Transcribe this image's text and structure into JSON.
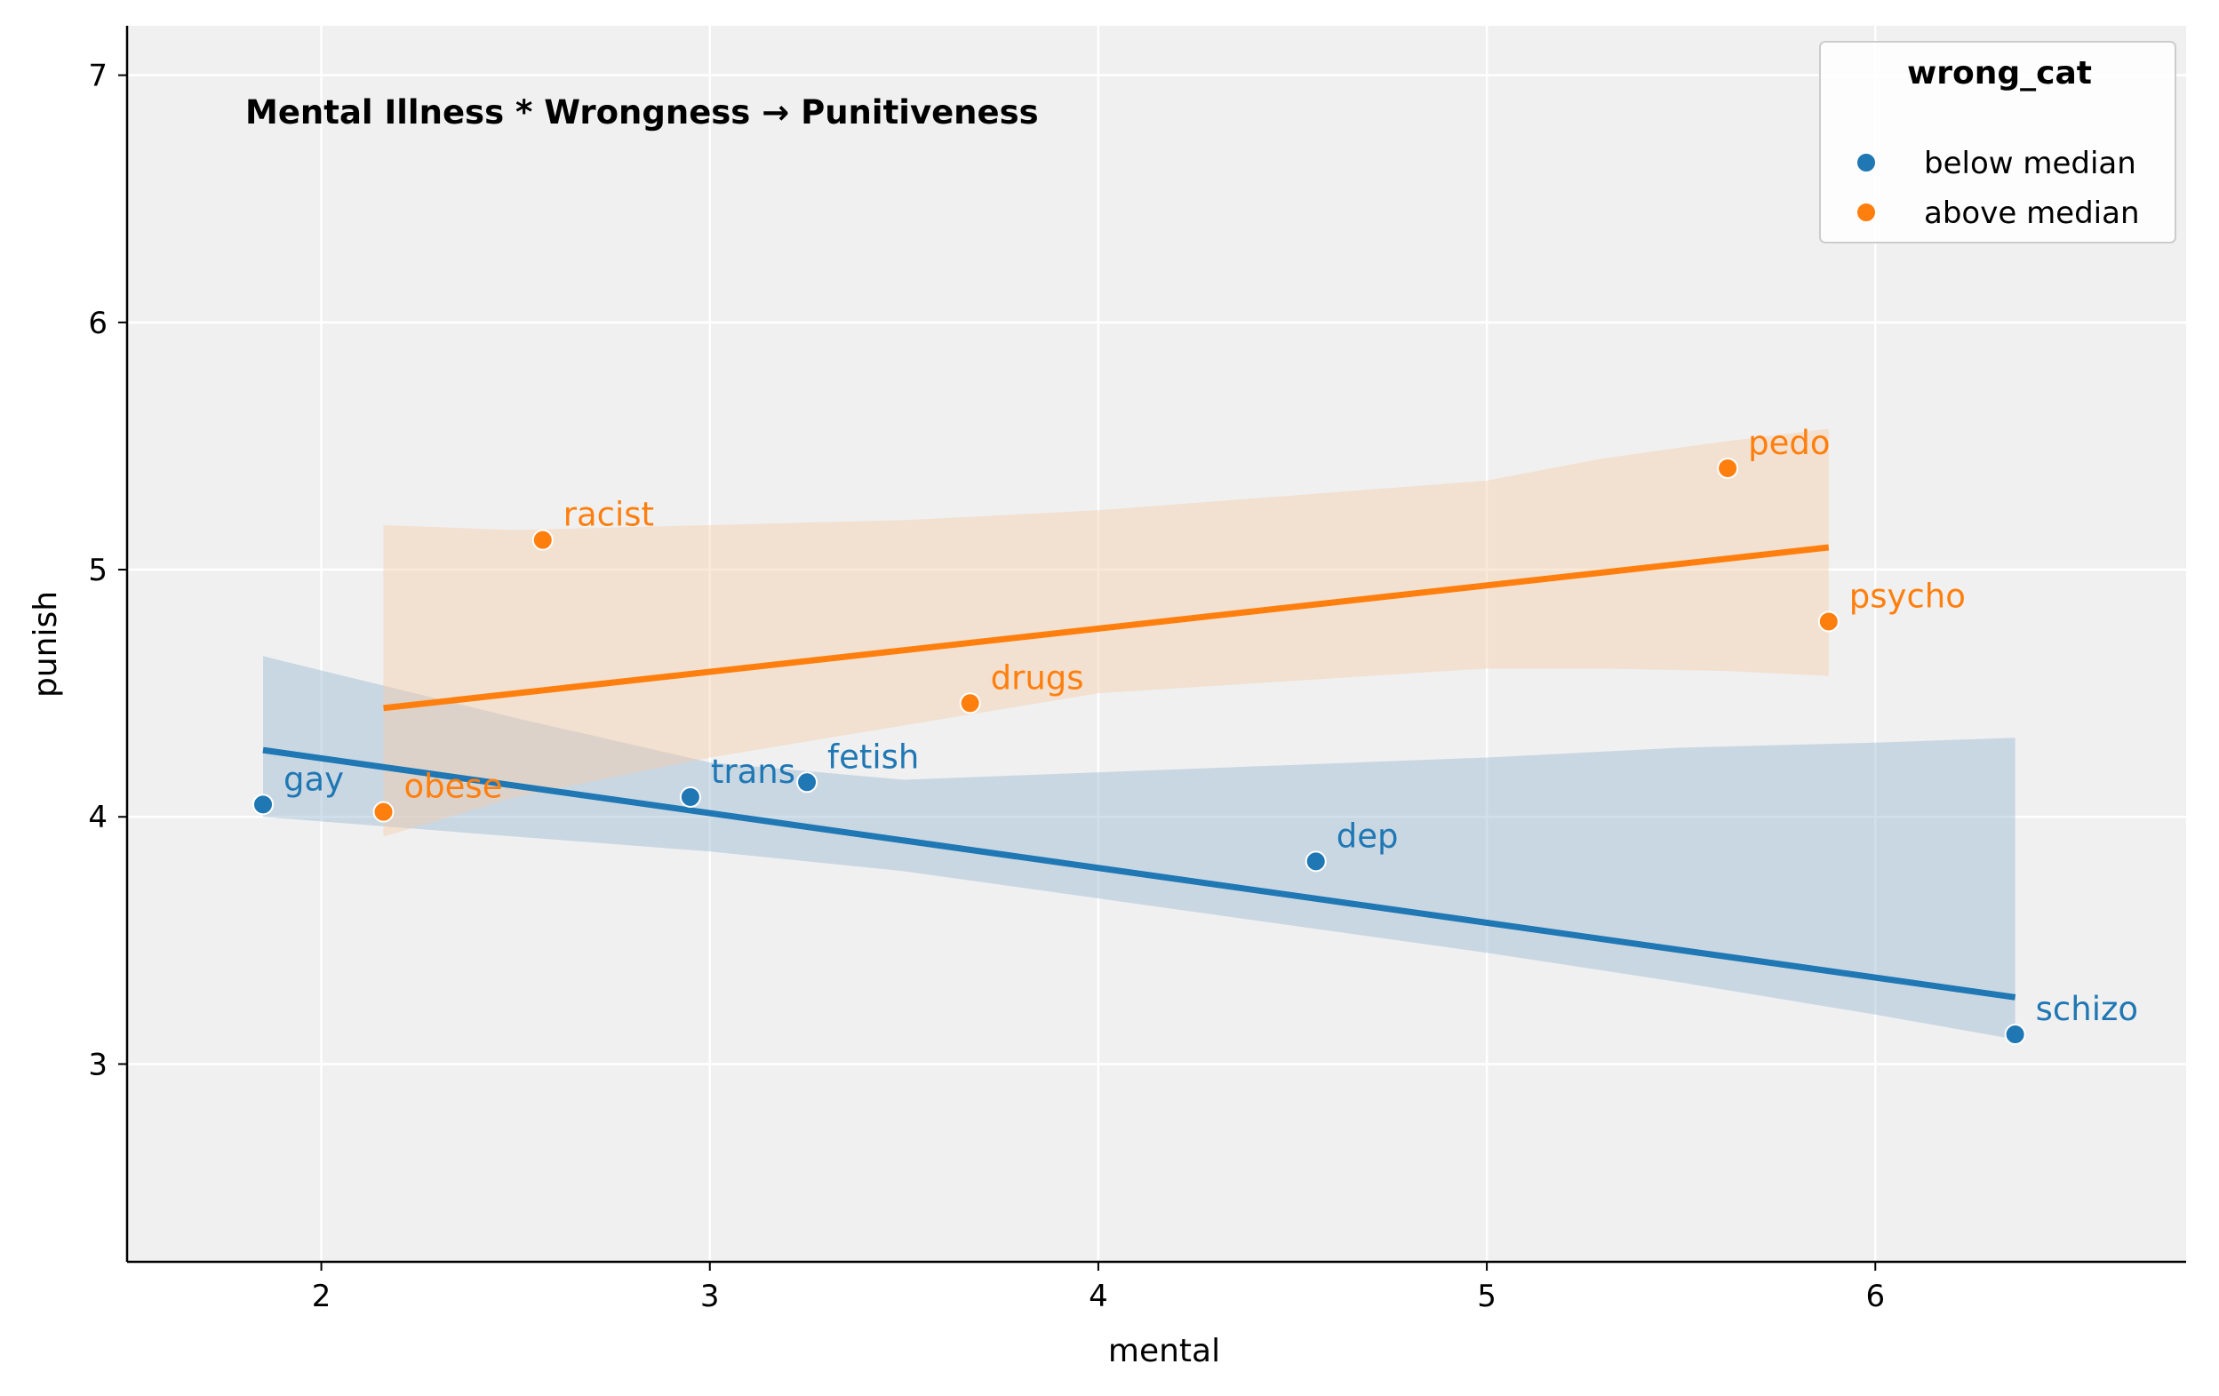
{
  "chart_data": {
    "type": "scatter",
    "title": "Mental Illness * Wrongness → Punitiveness",
    "xlabel": "mental",
    "ylabel": "punish",
    "xlim": [
      1.5,
      6.8
    ],
    "ylim": [
      2.2,
      7.2
    ],
    "xticks": [
      2,
      3,
      4,
      5,
      6
    ],
    "yticks": [
      3,
      4,
      5,
      6,
      7
    ],
    "grid": true,
    "legend": {
      "title": "wrong_cat",
      "position": "top-right",
      "entries": [
        "below median",
        "above median"
      ]
    },
    "series": [
      {
        "name": "below median",
        "color": "#1f77b4",
        "band_color": "#9ab8d3",
        "points": [
          {
            "label": "gay",
            "x": 1.85,
            "y": 4.05
          },
          {
            "label": "trans",
            "x": 2.95,
            "y": 4.08
          },
          {
            "label": "fetish",
            "x": 3.25,
            "y": 4.14
          },
          {
            "label": "dep",
            "x": 4.56,
            "y": 3.82
          },
          {
            "label": "schizo",
            "x": 6.36,
            "y": 3.12
          }
        ],
        "fit": {
          "x": [
            1.85,
            6.36
          ],
          "y": [
            4.27,
            3.27
          ]
        },
        "band": {
          "x": [
            1.85,
            2.5,
            3.0,
            3.5,
            4.0,
            4.5,
            5.0,
            5.5,
            6.0,
            6.36
          ],
          "upper": [
            4.65,
            4.4,
            4.22,
            4.15,
            4.18,
            4.21,
            4.24,
            4.28,
            4.3,
            4.32
          ],
          "lower": [
            4.0,
            3.92,
            3.86,
            3.78,
            3.67,
            3.56,
            3.45,
            3.33,
            3.2,
            3.1
          ]
        }
      },
      {
        "name": "above median",
        "color": "#ff7f0e",
        "band_color": "#f5cba8",
        "points": [
          {
            "label": "obese",
            "x": 2.16,
            "y": 4.02
          },
          {
            "label": "racist",
            "x": 2.57,
            "y": 5.12
          },
          {
            "label": "drugs",
            "x": 3.67,
            "y": 4.46
          },
          {
            "label": "pedo",
            "x": 5.62,
            "y": 5.41
          },
          {
            "label": "psycho",
            "x": 5.88,
            "y": 4.79
          }
        ],
        "fit": {
          "x": [
            2.16,
            5.88
          ],
          "y": [
            4.44,
            5.09
          ]
        },
        "band": {
          "x": [
            2.16,
            2.5,
            3.0,
            3.5,
            4.0,
            4.5,
            5.0,
            5.3,
            5.62,
            5.88
          ],
          "upper": [
            5.18,
            5.16,
            5.18,
            5.2,
            5.24,
            5.3,
            5.36,
            5.45,
            5.52,
            5.57
          ],
          "lower": [
            3.92,
            4.08,
            4.24,
            4.37,
            4.5,
            4.55,
            4.6,
            4.6,
            4.59,
            4.57
          ]
        }
      }
    ]
  }
}
